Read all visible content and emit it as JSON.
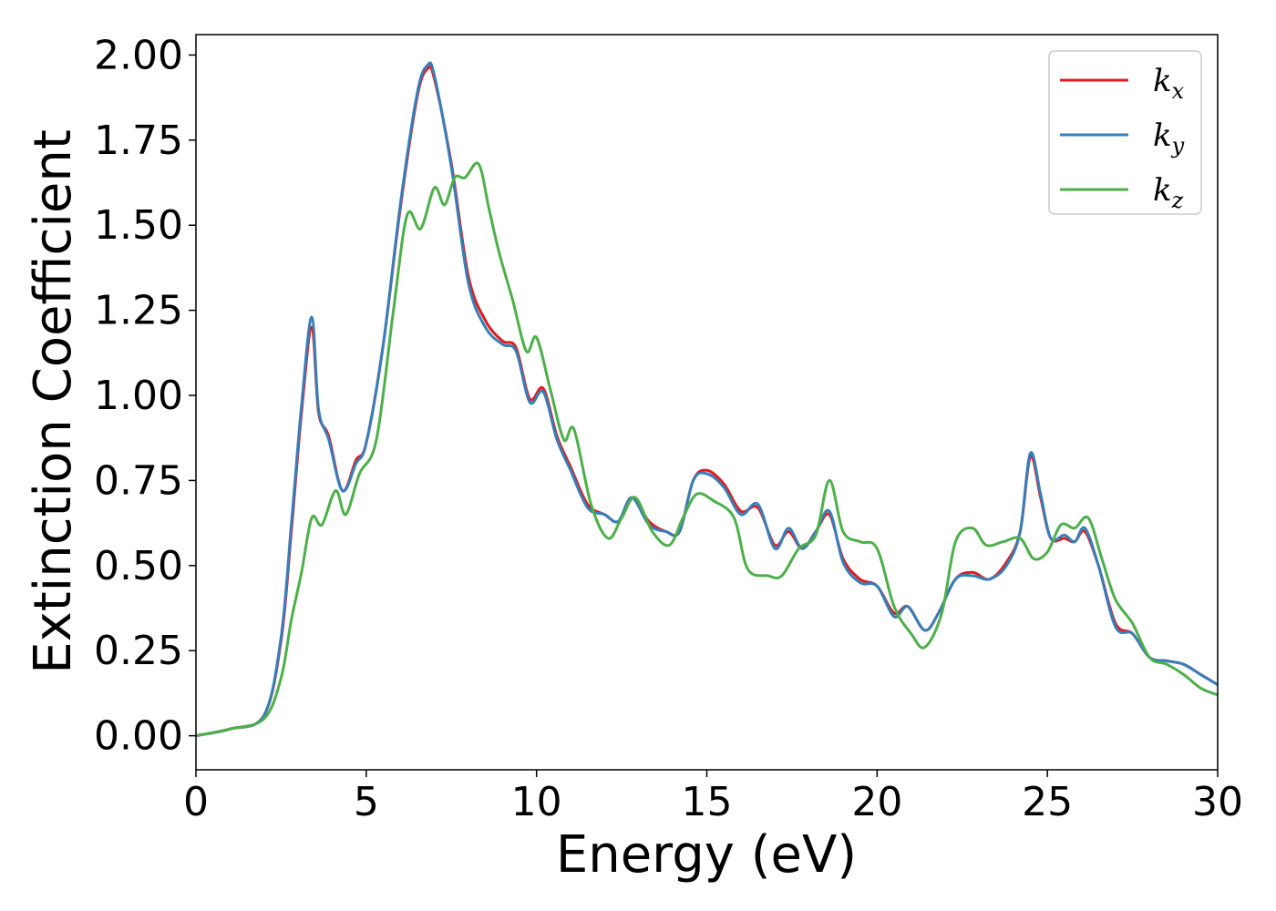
{
  "chart_data": {
    "type": "line",
    "title": "",
    "xlabel": "Energy (eV)",
    "ylabel": "Extinction Coefficient",
    "xlim": [
      0,
      30
    ],
    "ylim": [
      -0.1,
      2.06
    ],
    "xticks": [
      0,
      5,
      10,
      15,
      20,
      25,
      30
    ],
    "xtick_labels": [
      "0",
      "5",
      "10",
      "15",
      "20",
      "25",
      "30"
    ],
    "yticks": [
      0,
      0.25,
      0.5,
      0.75,
      1.0,
      1.25,
      1.5,
      1.75,
      2.0
    ],
    "ytick_labels": [
      "0.00",
      "0.25",
      "0.50",
      "0.75",
      "1.00",
      "1.25",
      "1.50",
      "1.75",
      "2.00"
    ],
    "grid": false,
    "legend_position": "top-right",
    "series": [
      {
        "name": "k_x",
        "legend_base": "k",
        "legend_sub": "x",
        "color": "#e41a1c",
        "x": [
          0,
          1,
          2,
          2.5,
          2.8,
          3.1,
          3.4,
          3.6,
          3.9,
          4.3,
          4.7,
          5.0,
          5.5,
          6.0,
          6.5,
          6.8,
          7.0,
          7.5,
          8.0,
          8.5,
          9.0,
          9.4,
          9.8,
          10.2,
          10.6,
          11.0,
          11.5,
          12.0,
          12.4,
          12.8,
          13.3,
          13.8,
          14.2,
          14.6,
          15.0,
          15.5,
          16.0,
          16.5,
          17.0,
          17.4,
          17.8,
          18.2,
          18.6,
          19.0,
          19.5,
          20.0,
          20.5,
          20.9,
          21.4,
          21.8,
          22.3,
          22.8,
          23.3,
          23.8,
          24.2,
          24.5,
          24.8,
          25.1,
          25.5,
          25.8,
          26.1,
          26.5,
          27.0,
          27.5,
          28.0,
          28.5,
          29.0,
          29.5,
          30.0
        ],
        "y": [
          0.0,
          0.02,
          0.06,
          0.28,
          0.6,
          0.95,
          1.2,
          0.95,
          0.88,
          0.72,
          0.81,
          0.86,
          1.15,
          1.55,
          1.88,
          1.96,
          1.93,
          1.68,
          1.35,
          1.22,
          1.16,
          1.14,
          0.99,
          1.02,
          0.88,
          0.79,
          0.68,
          0.65,
          0.63,
          0.7,
          0.63,
          0.6,
          0.6,
          0.75,
          0.78,
          0.74,
          0.66,
          0.67,
          0.56,
          0.6,
          0.55,
          0.6,
          0.65,
          0.52,
          0.46,
          0.44,
          0.36,
          0.38,
          0.31,
          0.36,
          0.46,
          0.48,
          0.46,
          0.51,
          0.6,
          0.82,
          0.7,
          0.58,
          0.58,
          0.57,
          0.6,
          0.5,
          0.33,
          0.3,
          0.23,
          0.22,
          0.21,
          0.18,
          0.15
        ]
      },
      {
        "name": "k_y",
        "legend_base": "k",
        "legend_sub": "y",
        "color": "#377eb8",
        "x": [
          0,
          1,
          2,
          2.5,
          2.8,
          3.1,
          3.4,
          3.6,
          3.9,
          4.3,
          4.7,
          5.0,
          5.5,
          6.0,
          6.5,
          6.8,
          7.0,
          7.5,
          8.0,
          8.5,
          9.0,
          9.4,
          9.8,
          10.2,
          10.6,
          11.0,
          11.5,
          12.0,
          12.4,
          12.8,
          13.3,
          13.8,
          14.2,
          14.6,
          15.0,
          15.5,
          16.0,
          16.5,
          17.0,
          17.4,
          17.8,
          18.2,
          18.6,
          19.0,
          19.5,
          20.0,
          20.5,
          20.9,
          21.4,
          21.8,
          22.3,
          22.8,
          23.3,
          23.8,
          24.2,
          24.5,
          24.8,
          25.1,
          25.5,
          25.8,
          26.1,
          26.5,
          27.0,
          27.5,
          28.0,
          28.5,
          29.0,
          29.5,
          30.0
        ],
        "y": [
          0.0,
          0.02,
          0.06,
          0.29,
          0.62,
          0.97,
          1.23,
          0.96,
          0.87,
          0.72,
          0.8,
          0.86,
          1.15,
          1.56,
          1.89,
          1.97,
          1.94,
          1.67,
          1.33,
          1.2,
          1.15,
          1.13,
          0.98,
          1.01,
          0.87,
          0.78,
          0.67,
          0.65,
          0.63,
          0.7,
          0.62,
          0.6,
          0.6,
          0.75,
          0.77,
          0.73,
          0.65,
          0.68,
          0.55,
          0.61,
          0.55,
          0.6,
          0.66,
          0.51,
          0.45,
          0.44,
          0.35,
          0.38,
          0.31,
          0.36,
          0.46,
          0.47,
          0.46,
          0.5,
          0.6,
          0.83,
          0.71,
          0.58,
          0.59,
          0.57,
          0.61,
          0.5,
          0.32,
          0.3,
          0.23,
          0.22,
          0.21,
          0.18,
          0.15
        ]
      },
      {
        "name": "k_z",
        "legend_base": "k",
        "legend_sub": "z",
        "color": "#4daf4a",
        "x": [
          0,
          1,
          2,
          2.5,
          2.8,
          3.1,
          3.4,
          3.7,
          4.1,
          4.4,
          4.8,
          5.3,
          5.8,
          6.2,
          6.6,
          7.0,
          7.3,
          7.6,
          7.9,
          8.3,
          8.6,
          8.9,
          9.3,
          9.7,
          10.0,
          10.4,
          10.8,
          11.1,
          11.6,
          12.1,
          12.5,
          12.9,
          13.4,
          13.9,
          14.3,
          14.7,
          15.2,
          15.8,
          16.2,
          16.8,
          17.2,
          17.7,
          18.2,
          18.6,
          19.0,
          19.5,
          20.0,
          20.5,
          21.0,
          21.4,
          21.9,
          22.3,
          22.8,
          23.2,
          23.7,
          24.2,
          24.6,
          25.0,
          25.4,
          25.8,
          26.2,
          26.6,
          27.0,
          27.5,
          28.0,
          28.5,
          29.0,
          29.5,
          30.0
        ],
        "y": [
          0.0,
          0.02,
          0.05,
          0.17,
          0.34,
          0.48,
          0.64,
          0.62,
          0.72,
          0.65,
          0.77,
          0.87,
          1.25,
          1.53,
          1.49,
          1.61,
          1.56,
          1.64,
          1.64,
          1.68,
          1.55,
          1.42,
          1.28,
          1.13,
          1.17,
          1.02,
          0.87,
          0.9,
          0.68,
          0.58,
          0.64,
          0.7,
          0.6,
          0.56,
          0.64,
          0.71,
          0.69,
          0.64,
          0.49,
          0.47,
          0.47,
          0.55,
          0.59,
          0.75,
          0.6,
          0.57,
          0.55,
          0.38,
          0.3,
          0.26,
          0.36,
          0.57,
          0.61,
          0.56,
          0.57,
          0.58,
          0.52,
          0.54,
          0.62,
          0.61,
          0.64,
          0.52,
          0.4,
          0.33,
          0.23,
          0.21,
          0.18,
          0.14,
          0.12
        ]
      }
    ]
  }
}
